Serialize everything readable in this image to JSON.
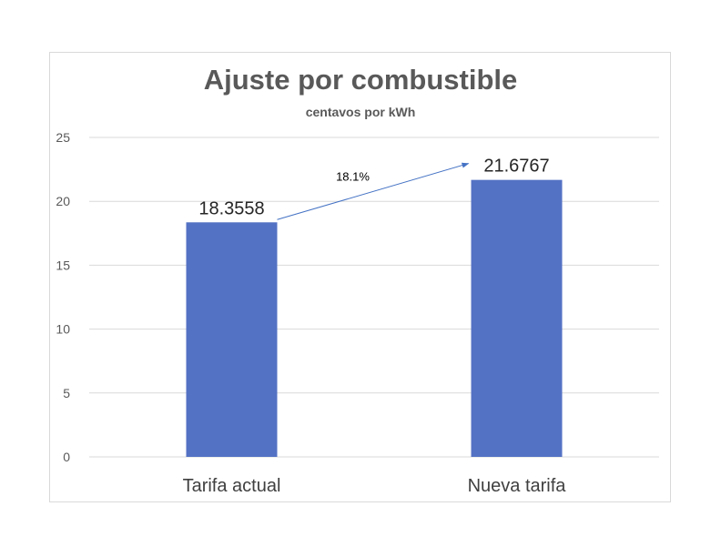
{
  "chart_data": {
    "type": "bar",
    "title": "Ajuste por combustible",
    "subtitle": "centavos por kWh",
    "categories": [
      "Tarifa actual",
      "Nueva tarifa"
    ],
    "values": [
      18.3558,
      21.6767
    ],
    "value_labels": [
      "18.3558",
      "21.6767"
    ],
    "ylim": [
      0,
      25
    ],
    "yticks": [
      0,
      5,
      10,
      15,
      20,
      25
    ],
    "grid": true,
    "legend": "none",
    "annotation": {
      "text": "18.1%",
      "from_category": "Tarifa actual",
      "to_category": "Nueva tarifa"
    },
    "colors": {
      "bar": "#5472C4",
      "arrow": "#4472C4",
      "grid": "#D9D9D9"
    }
  }
}
